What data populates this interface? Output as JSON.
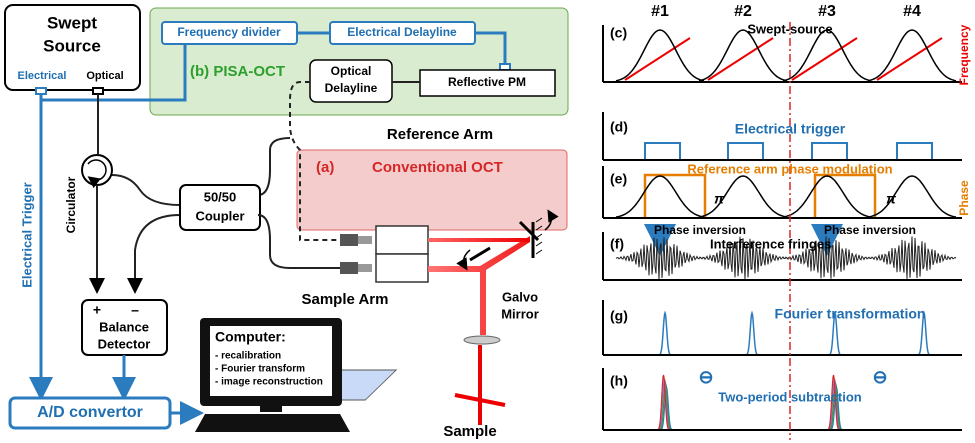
{
  "source": {
    "title_lines": [
      "Swept",
      "Source"
    ],
    "ports": [
      "Electrical",
      "Optical"
    ]
  },
  "pisa": {
    "frequency_divider": "Frequency divider",
    "electrical_delayline": "Electrical Delayline",
    "label": "(b) PISA-OCT",
    "optical_delayline_lines": [
      "Optical",
      "Delayline"
    ],
    "reflective_pm": "Reflective PM"
  },
  "reference_arm": "Reference Arm",
  "conventional": {
    "tag": "(a)",
    "label": "Conventional OCT"
  },
  "circulator": "Circulator",
  "electrical_trigger": "Electrical Trigger",
  "coupler_lines": [
    "50/50",
    "Coupler"
  ],
  "sample_arm": "Sample Arm",
  "galvo_lines": [
    "Galvo",
    "Mirror"
  ],
  "detector": {
    "plus": "+",
    "minus": "–",
    "lines": [
      "Balance",
      "Detector"
    ]
  },
  "ad_convertor": "A/D convertor",
  "computer": {
    "title": "Computer:",
    "items": [
      "- recalibration",
      "- Fourier transform",
      "- image reconstruction"
    ]
  },
  "sample": "Sample",
  "timing": {
    "periods": [
      "#1",
      "#2",
      "#3",
      "#4"
    ],
    "panels": [
      {
        "tag": "(c)",
        "title": "Swept-source",
        "axis": "Frequency"
      },
      {
        "tag": "(d)",
        "title": "Electrical trigger"
      },
      {
        "tag": "(e)",
        "title": "Reference arm phase modulation",
        "axis": "Phase",
        "pi": [
          "π",
          "π"
        ]
      },
      {
        "tag": "(f)",
        "title": "Interference fringes",
        "notes": [
          "Phase inversion",
          "Phase inversion"
        ]
      },
      {
        "tag": "(g)",
        "title": "Fourier transformation"
      },
      {
        "tag": "(h)",
        "title": "Two-period subtraction",
        "marks": [
          "⊖",
          "⊖"
        ]
      }
    ]
  }
}
